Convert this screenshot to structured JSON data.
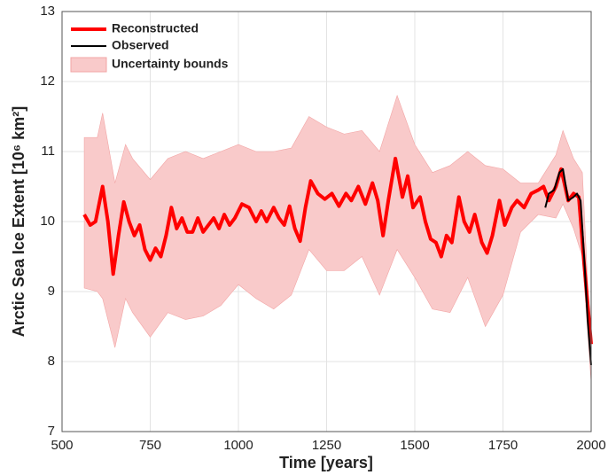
{
  "chart_data": {
    "type": "line",
    "xlabel": "Time [years]",
    "ylabel": "Arctic Sea Ice Extent [10⁶ km²]",
    "xlim": [
      500,
      2000
    ],
    "xticks": [
      500,
      750,
      1000,
      1250,
      1500,
      1750,
      2000
    ],
    "ylim": [
      7,
      13
    ],
    "yticks": [
      7,
      8,
      9,
      10,
      11,
      12,
      13
    ],
    "grid": true,
    "legend": "upper-left",
    "band": {
      "name": "Uncertainty bounds",
      "color": "#f9caca",
      "x": [
        563,
        600,
        615,
        650,
        680,
        700,
        750,
        800,
        850,
        900,
        950,
        1000,
        1050,
        1100,
        1150,
        1200,
        1250,
        1300,
        1350,
        1400,
        1450,
        1500,
        1550,
        1600,
        1650,
        1700,
        1750,
        1800,
        1850,
        1900,
        1920,
        1950,
        1975,
        2000
      ],
      "upper": [
        11.2,
        11.2,
        11.55,
        10.55,
        11.1,
        10.9,
        10.6,
        10.9,
        11.0,
        10.9,
        11.0,
        11.1,
        11.0,
        11.0,
        11.05,
        11.5,
        11.35,
        11.25,
        11.3,
        11.0,
        11.8,
        11.1,
        10.7,
        10.8,
        11.0,
        10.8,
        10.75,
        10.55,
        10.55,
        10.95,
        11.3,
        10.9,
        10.7,
        8.1
      ],
      "lower": [
        9.05,
        9.0,
        8.9,
        8.2,
        8.9,
        8.7,
        8.35,
        8.7,
        8.6,
        8.65,
        8.8,
        9.1,
        8.9,
        8.75,
        8.95,
        9.6,
        9.3,
        9.3,
        9.5,
        8.95,
        9.6,
        9.2,
        8.75,
        8.7,
        9.2,
        8.5,
        8.95,
        9.85,
        10.1,
        10.05,
        10.25,
        9.9,
        9.5,
        7.7
      ]
    },
    "series": [
      {
        "name": "Reconstructed",
        "color": "#ff0000",
        "width": 4,
        "x": [
          563,
          580,
          595,
          615,
          630,
          645,
          660,
          675,
          690,
          705,
          720,
          735,
          750,
          765,
          780,
          795,
          810,
          825,
          840,
          855,
          870,
          885,
          900,
          915,
          930,
          945,
          960,
          975,
          990,
          1010,
          1030,
          1050,
          1065,
          1080,
          1100,
          1115,
          1130,
          1145,
          1160,
          1175,
          1190,
          1205,
          1225,
          1245,
          1265,
          1285,
          1305,
          1320,
          1340,
          1360,
          1380,
          1395,
          1410,
          1425,
          1445,
          1465,
          1480,
          1495,
          1515,
          1530,
          1545,
          1560,
          1575,
          1590,
          1605,
          1625,
          1640,
          1655,
          1670,
          1690,
          1705,
          1720,
          1740,
          1755,
          1775,
          1790,
          1810,
          1830,
          1850,
          1865,
          1880,
          1900,
          1915,
          1935,
          1950,
          1965,
          1980,
          2000
        ],
        "values": [
          10.1,
          9.95,
          10.0,
          10.5,
          10.0,
          9.25,
          9.8,
          10.28,
          10.0,
          9.8,
          9.95,
          9.6,
          9.45,
          9.62,
          9.5,
          9.8,
          10.2,
          9.9,
          10.05,
          9.85,
          9.85,
          10.05,
          9.85,
          9.95,
          10.05,
          9.9,
          10.1,
          9.95,
          10.05,
          10.25,
          10.2,
          10.0,
          10.15,
          10.0,
          10.2,
          10.05,
          9.95,
          10.22,
          9.9,
          9.72,
          10.2,
          10.58,
          10.4,
          10.32,
          10.4,
          10.22,
          10.4,
          10.3,
          10.5,
          10.25,
          10.55,
          10.3,
          9.8,
          10.3,
          10.9,
          10.35,
          10.65,
          10.2,
          10.35,
          10.0,
          9.75,
          9.7,
          9.5,
          9.8,
          9.7,
          10.35,
          10.0,
          9.85,
          10.1,
          9.7,
          9.55,
          9.8,
          10.3,
          9.95,
          10.2,
          10.3,
          10.2,
          10.4,
          10.45,
          10.5,
          10.3,
          10.5,
          10.75,
          10.3,
          10.4,
          10.35,
          9.4,
          8.25
        ]
      },
      {
        "name": "Observed",
        "color": "#000000",
        "width": 2,
        "x": [
          1870,
          1880,
          1895,
          1910,
          1920,
          1935,
          1950,
          1960,
          1970,
          1980,
          1990,
          2000
        ],
        "values": [
          10.2,
          10.4,
          10.45,
          10.7,
          10.75,
          10.3,
          10.35,
          10.4,
          10.3,
          9.5,
          8.6,
          7.95
        ]
      }
    ]
  }
}
